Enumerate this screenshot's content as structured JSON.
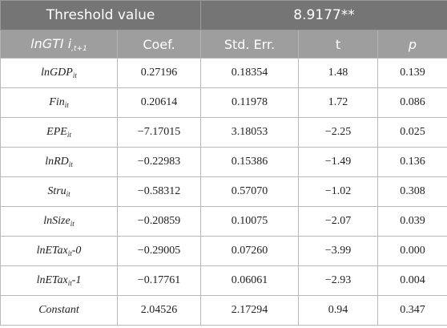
{
  "table": {
    "threshold_label": "Threshold value",
    "threshold_value": "8.9177**",
    "header": {
      "dep_var_main": "lnGTI i",
      "dep_var_sub": ",t+1",
      "coef": "Coef.",
      "std_err": "Std. Err.",
      "t": "t",
      "p": "p"
    },
    "rows": [
      {
        "var": "lnGDP",
        "sub": "it",
        "suffix": "",
        "coef": "0.27196",
        "se": "0.18354",
        "t": "1.48",
        "p": "0.139"
      },
      {
        "var": "Fin",
        "sub": "it",
        "suffix": "",
        "coef": "0.20614",
        "se": "0.11978",
        "t": "1.72",
        "p": "0.086"
      },
      {
        "var": "EPE",
        "sub": "it",
        "suffix": "",
        "coef": "−7.17015",
        "se": "3.18053",
        "t": "−2.25",
        "p": "0.025"
      },
      {
        "var": "lnRD",
        "sub": "it",
        "suffix": "",
        "coef": "−0.22983",
        "se": "0.15386",
        "t": "−1.49",
        "p": "0.136"
      },
      {
        "var": "Stru",
        "sub": "it",
        "suffix": "",
        "coef": "−0.58312",
        "se": "0.57070",
        "t": "−1.02",
        "p": "0.308"
      },
      {
        "var": "lnSize",
        "sub": "it",
        "suffix": "",
        "coef": "−0.20859",
        "se": "0.10075",
        "t": "−2.07",
        "p": "0.039"
      },
      {
        "var": "lnETax",
        "sub": "it",
        "suffix": "-0",
        "coef": "−0.29005",
        "se": "0.07260",
        "t": "−3.99",
        "p": "0.000"
      },
      {
        "var": "lnETax",
        "sub": "it",
        "suffix": "-1",
        "coef": "−0.17761",
        "se": "0.06061",
        "t": "−2.93",
        "p": "0.004"
      },
      {
        "var": "Constant",
        "sub": "",
        "suffix": "",
        "coef": "2.04526",
        "se": "2.17294",
        "t": "0.94",
        "p": "0.347"
      }
    ]
  }
}
